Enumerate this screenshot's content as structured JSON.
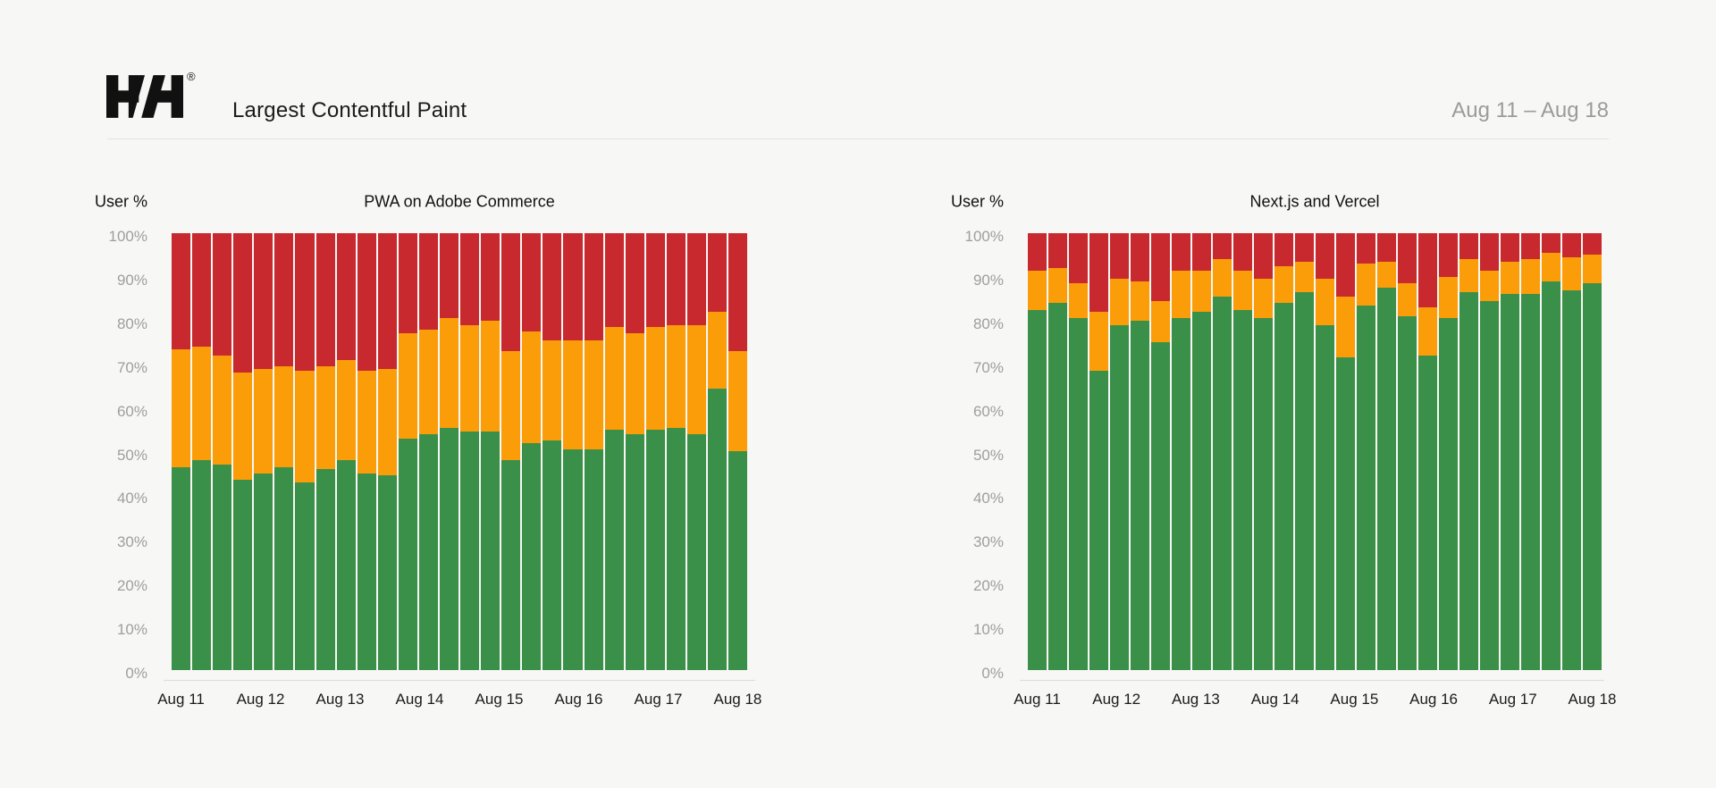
{
  "header": {
    "logo": "H/H",
    "logo_registered": "®",
    "title": "Largest Contentful Paint",
    "date_range": "Aug 11 – Aug 18"
  },
  "colors": {
    "good": "#3a9048",
    "needs_improvement": "#fb9d09",
    "poor": "#c8292f",
    "background": "#f7f7f5",
    "muted_text": "#9e9e9e",
    "text": "#1b1b1b"
  },
  "chart_data": [
    {
      "type": "bar",
      "stacked": true,
      "title": "PWA on Adobe Commerce",
      "ylabel": "User %",
      "ylim": [
        0,
        100
      ],
      "grid": false,
      "y_tick_labels": [
        "100%",
        "90%",
        "80%",
        "70%",
        "60%",
        "50%",
        "40%",
        "30%",
        "20%",
        "10%",
        "0%"
      ],
      "x_tick_labels": [
        "Aug 11",
        "Aug 12",
        "Aug 13",
        "Aug 14",
        "Aug 15",
        "Aug 16",
        "Aug 17",
        "Aug 18"
      ],
      "bars_per_day": 4,
      "series": [
        {
          "name": "good",
          "color": "#3a9048",
          "values": [
            46.5,
            48,
            47,
            43.5,
            45,
            46.5,
            43,
            46,
            48,
            45,
            44.5,
            53,
            54,
            55.5,
            54.5,
            54.5,
            48,
            52,
            52.5,
            50.5,
            50.5,
            55,
            54,
            55,
            55.5,
            54,
            64.5,
            50
          ]
        },
        {
          "name": "needs_improvement",
          "color": "#fb9d09",
          "values": [
            27,
            26,
            25,
            24.5,
            24,
            23,
            25.5,
            23.5,
            23,
            23.5,
            24.5,
            24,
            24,
            25,
            24.5,
            25.5,
            25,
            25.5,
            23,
            25,
            25,
            23.5,
            23,
            23.5,
            23.5,
            25,
            17.5,
            23
          ]
        },
        {
          "name": "poor",
          "color": "#c8292f",
          "values": [
            26.5,
            26,
            28,
            32,
            31,
            30.5,
            31.5,
            30.5,
            29,
            31.5,
            31,
            23,
            22,
            19.5,
            21,
            20,
            27,
            22.5,
            24.5,
            24.5,
            24.5,
            21.5,
            23,
            21.5,
            21,
            21,
            18,
            27
          ]
        }
      ]
    },
    {
      "type": "bar",
      "stacked": true,
      "title": "Next.js and Vercel",
      "ylabel": "User %",
      "ylim": [
        0,
        100
      ],
      "grid": false,
      "y_tick_labels": [
        "100%",
        "90%",
        "80%",
        "70%",
        "60%",
        "50%",
        "40%",
        "30%",
        "20%",
        "10%",
        "0%"
      ],
      "x_tick_labels": [
        "Aug 11",
        "Aug 12",
        "Aug 13",
        "Aug 14",
        "Aug 15",
        "Aug 16",
        "Aug 17",
        "Aug 18"
      ],
      "bars_per_day": 4,
      "series": [
        {
          "name": "good",
          "color": "#3a9048",
          "values": [
            82.5,
            84,
            80.5,
            68.5,
            79,
            80,
            75,
            80.5,
            82,
            85.5,
            82.5,
            80.5,
            84,
            86.5,
            79,
            71.5,
            83.5,
            87.5,
            81,
            72,
            80.5,
            86.5,
            84.5,
            86,
            86,
            89,
            87,
            88.5
          ]
        },
        {
          "name": "needs_improvement",
          "color": "#fb9d09",
          "values": [
            9,
            8,
            8,
            13.5,
            10.5,
            9,
            9.5,
            11,
            9.5,
            8.5,
            9,
            9,
            8.5,
            7,
            10.5,
            14,
            9.5,
            6,
            7.5,
            11,
            9.5,
            7.5,
            7,
            7.5,
            8,
            6.5,
            7.5,
            6.5
          ]
        },
        {
          "name": "poor",
          "color": "#c8292f",
          "values": [
            8.5,
            8,
            11.5,
            18,
            10.5,
            11,
            15.5,
            8.5,
            8.5,
            6,
            8.5,
            10.5,
            7.5,
            6.5,
            10.5,
            14.5,
            7,
            6.5,
            11.5,
            17,
            10,
            6,
            8.5,
            6.5,
            6,
            4.5,
            5.5,
            5
          ]
        }
      ]
    }
  ]
}
